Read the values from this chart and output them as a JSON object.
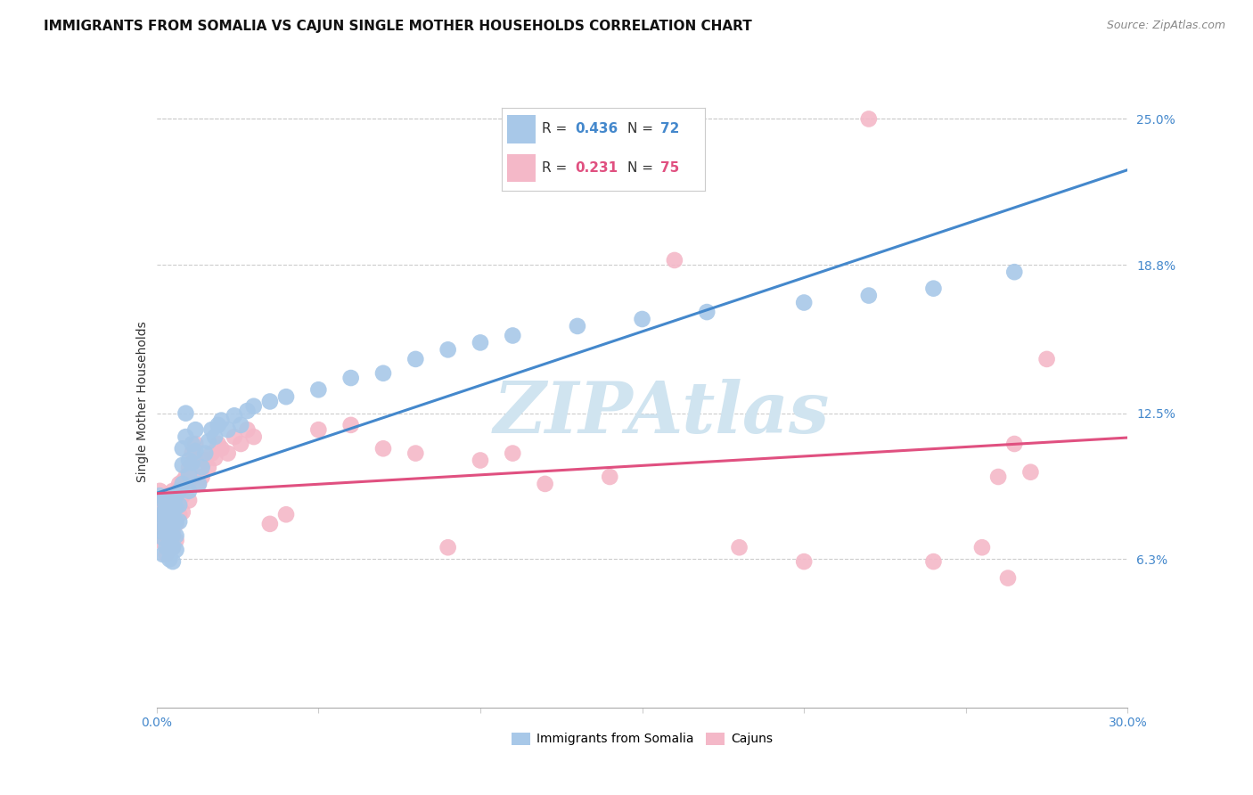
{
  "title": "IMMIGRANTS FROM SOMALIA VS CAJUN SINGLE MOTHER HOUSEHOLDS CORRELATION CHART",
  "source": "Source: ZipAtlas.com",
  "ylabel": "Single Mother Households",
  "x_min": 0.0,
  "x_max": 0.3,
  "y_min": 0.0,
  "y_max": 0.26,
  "y_tick_labels_right": [
    "6.3%",
    "12.5%",
    "18.8%",
    "25.0%"
  ],
  "y_tick_vals_right": [
    0.063,
    0.125,
    0.188,
    0.25
  ],
  "somalia_R": 0.436,
  "somalia_N": 72,
  "cajun_R": 0.231,
  "cajun_N": 75,
  "somalia_color": "#a8c8e8",
  "cajun_color": "#f4b8c8",
  "somalia_line_color": "#4488cc",
  "cajun_line_color": "#e05080",
  "watermark": "ZIPAtlas",
  "watermark_color": "#d0e4f0",
  "background_color": "#ffffff",
  "grid_color": "#cccccc",
  "tick_color": "#4488cc",
  "somalia_x": [
    0.001,
    0.001,
    0.001,
    0.002,
    0.002,
    0.002,
    0.002,
    0.002,
    0.003,
    0.003,
    0.003,
    0.003,
    0.004,
    0.004,
    0.004,
    0.004,
    0.004,
    0.005,
    0.005,
    0.005,
    0.005,
    0.005,
    0.005,
    0.006,
    0.006,
    0.006,
    0.006,
    0.006,
    0.007,
    0.007,
    0.007,
    0.008,
    0.008,
    0.008,
    0.009,
    0.009,
    0.01,
    0.01,
    0.01,
    0.011,
    0.011,
    0.012,
    0.012,
    0.013,
    0.014,
    0.015,
    0.016,
    0.017,
    0.018,
    0.019,
    0.02,
    0.022,
    0.024,
    0.026,
    0.028,
    0.03,
    0.035,
    0.04,
    0.05,
    0.06,
    0.07,
    0.08,
    0.09,
    0.1,
    0.11,
    0.13,
    0.15,
    0.17,
    0.2,
    0.22,
    0.24,
    0.265
  ],
  "somalia_y": [
    0.09,
    0.082,
    0.075,
    0.088,
    0.082,
    0.078,
    0.072,
    0.065,
    0.085,
    0.079,
    0.074,
    0.068,
    0.086,
    0.08,
    0.075,
    0.07,
    0.063,
    0.088,
    0.083,
    0.078,
    0.073,
    0.068,
    0.062,
    0.09,
    0.085,
    0.079,
    0.073,
    0.067,
    0.092,
    0.086,
    0.079,
    0.11,
    0.103,
    0.095,
    0.125,
    0.115,
    0.105,
    0.099,
    0.092,
    0.112,
    0.104,
    0.118,
    0.109,
    0.095,
    0.102,
    0.108,
    0.113,
    0.118,
    0.115,
    0.12,
    0.122,
    0.118,
    0.124,
    0.12,
    0.126,
    0.128,
    0.13,
    0.132,
    0.135,
    0.14,
    0.142,
    0.148,
    0.152,
    0.155,
    0.158,
    0.162,
    0.165,
    0.168,
    0.172,
    0.175,
    0.178,
    0.185
  ],
  "cajun_x": [
    0.001,
    0.001,
    0.001,
    0.002,
    0.002,
    0.002,
    0.002,
    0.003,
    0.003,
    0.003,
    0.003,
    0.003,
    0.004,
    0.004,
    0.004,
    0.004,
    0.005,
    0.005,
    0.005,
    0.005,
    0.005,
    0.006,
    0.006,
    0.006,
    0.006,
    0.007,
    0.007,
    0.007,
    0.008,
    0.008,
    0.008,
    0.009,
    0.009,
    0.01,
    0.01,
    0.01,
    0.011,
    0.011,
    0.012,
    0.012,
    0.013,
    0.014,
    0.015,
    0.016,
    0.017,
    0.018,
    0.019,
    0.02,
    0.022,
    0.024,
    0.026,
    0.028,
    0.03,
    0.035,
    0.04,
    0.05,
    0.06,
    0.07,
    0.08,
    0.09,
    0.1,
    0.11,
    0.12,
    0.14,
    0.16,
    0.18,
    0.2,
    0.22,
    0.24,
    0.255,
    0.26,
    0.263,
    0.265,
    0.27,
    0.275
  ],
  "cajun_y": [
    0.092,
    0.085,
    0.078,
    0.088,
    0.082,
    0.076,
    0.07,
    0.09,
    0.084,
    0.078,
    0.072,
    0.065,
    0.086,
    0.08,
    0.074,
    0.068,
    0.092,
    0.086,
    0.08,
    0.074,
    0.068,
    0.09,
    0.084,
    0.078,
    0.071,
    0.095,
    0.088,
    0.082,
    0.096,
    0.09,
    0.083,
    0.098,
    0.092,
    0.102,
    0.096,
    0.088,
    0.108,
    0.1,
    0.112,
    0.105,
    0.095,
    0.098,
    0.105,
    0.102,
    0.108,
    0.106,
    0.112,
    0.11,
    0.108,
    0.115,
    0.112,
    0.118,
    0.115,
    0.078,
    0.082,
    0.118,
    0.12,
    0.11,
    0.108,
    0.068,
    0.105,
    0.108,
    0.095,
    0.098,
    0.19,
    0.068,
    0.062,
    0.25,
    0.062,
    0.068,
    0.098,
    0.055,
    0.112,
    0.1,
    0.148
  ]
}
